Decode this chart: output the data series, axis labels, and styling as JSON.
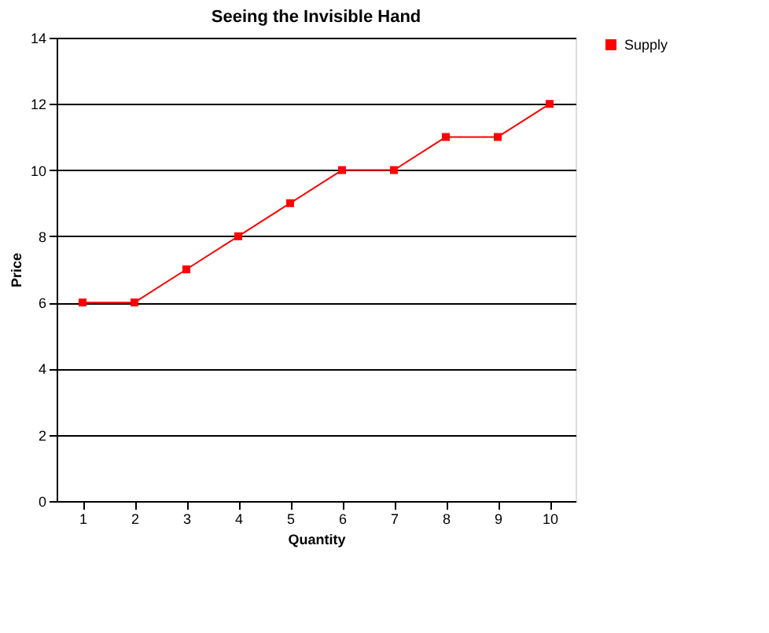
{
  "chart_data": {
    "type": "line",
    "title": "Seeing the Invisible Hand",
    "xlabel": "Quantity",
    "ylabel": "Price",
    "categories": [
      "1",
      "2",
      "3",
      "4",
      "5",
      "6",
      "7",
      "8",
      "9",
      "10"
    ],
    "series": [
      {
        "name": "Supply",
        "color": "#ff0000",
        "values": [
          6,
          6,
          7,
          8,
          9,
          10,
          10,
          11,
          11,
          12
        ]
      }
    ],
    "ylim": [
      0,
      14
    ],
    "yticks": [
      0,
      2,
      4,
      6,
      8,
      10,
      12,
      14
    ],
    "grid": "y",
    "legend": "right",
    "marker": "square",
    "line_style": "solid"
  }
}
